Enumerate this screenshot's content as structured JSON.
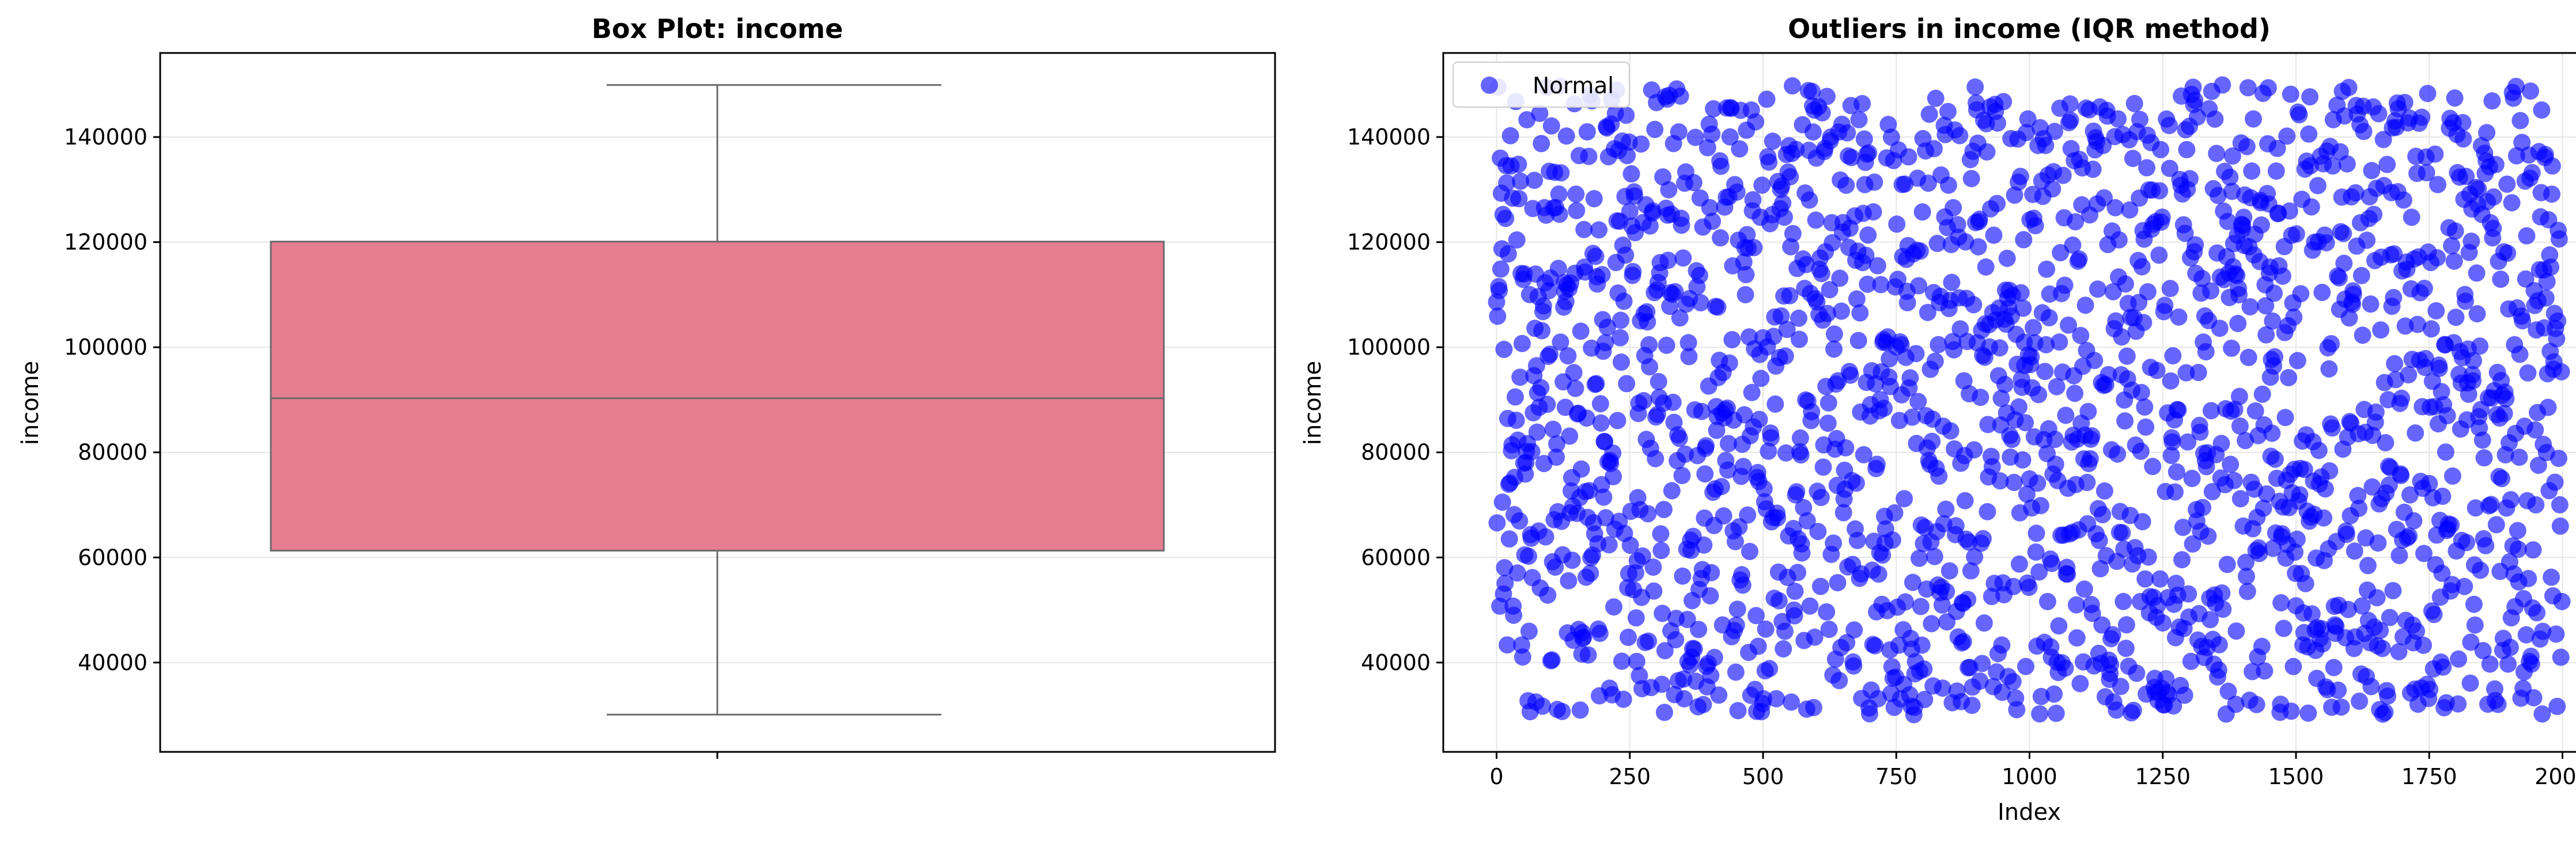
{
  "chart_data": [
    {
      "type": "box",
      "title": "Box Plot: income",
      "xlabel": "",
      "ylabel": "income",
      "ylim": [
        23000,
        156000
      ],
      "yticks": [
        40000,
        60000,
        80000,
        100000,
        120000,
        140000
      ],
      "grid": true,
      "box": {
        "whisker_low": 30100,
        "q1": 61300,
        "median": 90300,
        "q3": 120100,
        "whisker_high": 149900,
        "color": "#e67e91"
      }
    },
    {
      "type": "scatter",
      "title": "Outliers in income (IQR method)",
      "xlabel": "Index",
      "ylabel": "income",
      "xlim": [
        -100,
        2100
      ],
      "ylim": [
        23000,
        156000
      ],
      "xticks": [
        0,
        250,
        500,
        750,
        1000,
        1250,
        1500,
        1750,
        2000
      ],
      "yticks": [
        40000,
        60000,
        80000,
        100000,
        120000,
        140000
      ],
      "grid": true,
      "legend": {
        "placement": "top-left"
      },
      "series": [
        {
          "name": "Normal",
          "color": "#0000ff",
          "opacity": 0.6,
          "n_points": 2000,
          "x_start": 0,
          "x_end": 1999,
          "y_min": 30000,
          "y_max": 150000,
          "distribution": "uniform"
        }
      ]
    }
  ]
}
